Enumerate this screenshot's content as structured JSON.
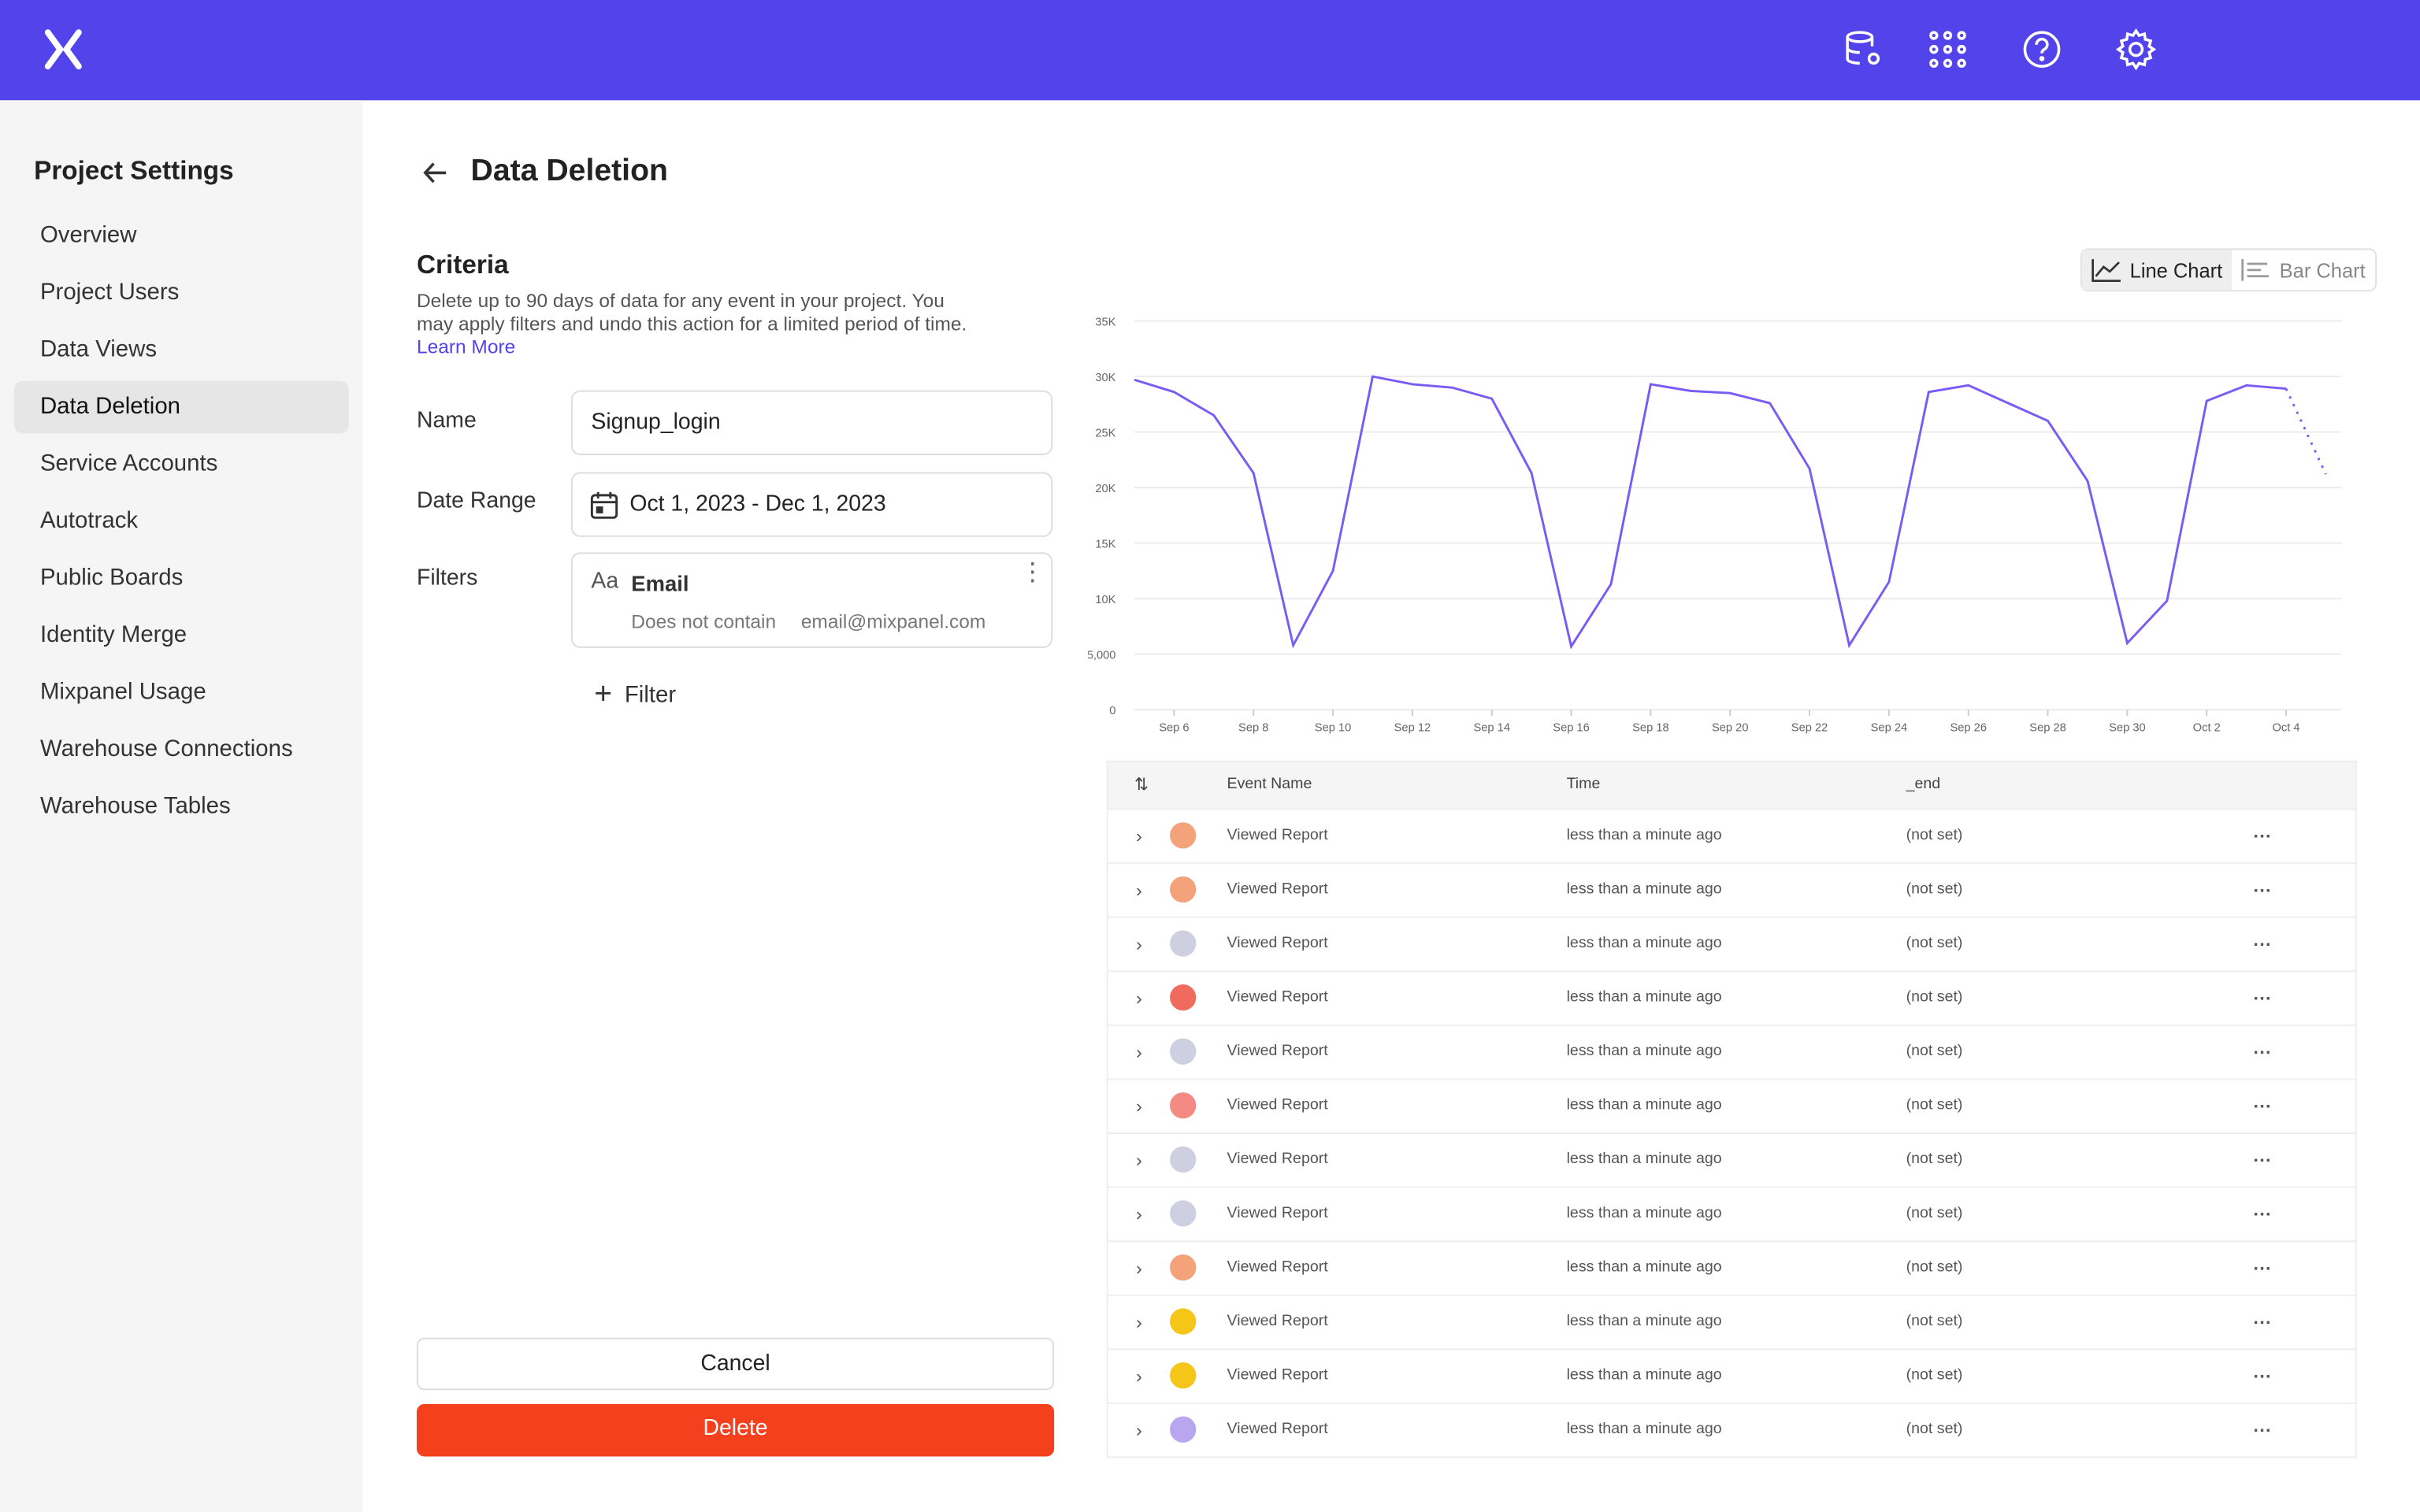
{
  "topbar": {
    "icons": [
      "mixpanel-logo",
      "database-settings-icon",
      "apps-grid-icon",
      "help-icon",
      "gear-icon"
    ],
    "color": "#5243ea"
  },
  "sidebar": {
    "title": "Project Settings",
    "items": [
      {
        "label": "Overview"
      },
      {
        "label": "Project Users"
      },
      {
        "label": "Data Views"
      },
      {
        "label": "Data Deletion",
        "active": true
      },
      {
        "label": "Service Accounts"
      },
      {
        "label": "Autotrack"
      },
      {
        "label": "Public Boards"
      },
      {
        "label": "Identity Merge"
      },
      {
        "label": "Mixpanel Usage"
      },
      {
        "label": "Warehouse Connections"
      },
      {
        "label": "Warehouse Tables"
      }
    ]
  },
  "page": {
    "title": "Data Deletion"
  },
  "criteria": {
    "heading": "Criteria",
    "description": "Delete up to 90 days of data for any event in your project. You may apply filters and undo this action for a limited period of time.",
    "learn_more": "Learn More",
    "name_label": "Name",
    "name_value": "Signup_login",
    "date_label": "Date Range",
    "date_value": "Oct 1, 2023 - Dec 1, 2023",
    "filters_label": "Filters",
    "filter": {
      "type_icon": "Aa",
      "property": "Email",
      "operator": "Does not contain",
      "value": "email@mixpanel.com"
    },
    "add_filter": "Filter",
    "cancel": "Cancel",
    "delete": "Delete",
    "delete_color": "#f4401c"
  },
  "chart_toggle": {
    "line": "Line Chart",
    "bar": "Bar Chart",
    "selected": "line"
  },
  "chart_data": {
    "type": "line",
    "color": "#7a5cf5",
    "ylim": [
      0,
      35000
    ],
    "yticks": [
      {
        "v": 0,
        "l": "0"
      },
      {
        "v": 5000,
        "l": "5,000"
      },
      {
        "v": 10000,
        "l": "10K"
      },
      {
        "v": 15000,
        "l": "15K"
      },
      {
        "v": 20000,
        "l": "20K"
      },
      {
        "v": 25000,
        "l": "25K"
      },
      {
        "v": 30000,
        "l": "30K"
      },
      {
        "v": 35000,
        "l": "35K"
      }
    ],
    "xticks": [
      "Sep 6",
      "Sep 8",
      "Sep 10",
      "Sep 12",
      "Sep 14",
      "Sep 16",
      "Sep 18",
      "Sep 20",
      "Sep 22",
      "Sep 24",
      "Sep 26",
      "Sep 28",
      "Sep 30",
      "Oct 2",
      "Oct 4"
    ],
    "x": [
      "Sep 5",
      "Sep 6",
      "Sep 7",
      "Sep 8",
      "Sep 9",
      "Sep 10",
      "Sep 11",
      "Sep 12",
      "Sep 13",
      "Sep 14",
      "Sep 15",
      "Sep 16",
      "Sep 17",
      "Sep 18",
      "Sep 19",
      "Sep 20",
      "Sep 21",
      "Sep 22",
      "Sep 23",
      "Sep 24",
      "Sep 25",
      "Sep 26",
      "Sep 27",
      "Sep 28",
      "Sep 29",
      "Sep 30",
      "Oct 1",
      "Oct 2",
      "Oct 3",
      "Oct 4",
      "Oct 5"
    ],
    "values": [
      29700,
      28600,
      26500,
      21300,
      5800,
      12500,
      30000,
      29300,
      29000,
      28000,
      21300,
      5700,
      11300,
      29300,
      28700,
      28500,
      27600,
      21700,
      5800,
      11500,
      28600,
      29200,
      27600,
      26000,
      20600,
      6000,
      9800,
      27800,
      29200,
      28900,
      21200
    ],
    "incomplete_last_point": true,
    "grid": true
  },
  "table": {
    "columns": [
      "Event Name",
      "Time",
      "_end"
    ],
    "rows": [
      {
        "event": "Viewed Report",
        "time": "less than a minute ago",
        "end": "(not set)",
        "avatar": "#f4a27a"
      },
      {
        "event": "Viewed Report",
        "time": "less than a minute ago",
        "end": "(not set)",
        "avatar": "#f4a27a"
      },
      {
        "event": "Viewed Report",
        "time": "less than a minute ago",
        "end": "(not set)",
        "avatar": "#cfcfe2"
      },
      {
        "event": "Viewed Report",
        "time": "less than a minute ago",
        "end": "(not set)",
        "avatar": "#f06b5e"
      },
      {
        "event": "Viewed Report",
        "time": "less than a minute ago",
        "end": "(not set)",
        "avatar": "#cfcfe2"
      },
      {
        "event": "Viewed Report",
        "time": "less than a minute ago",
        "end": "(not set)",
        "avatar": "#f38b84"
      },
      {
        "event": "Viewed Report",
        "time": "less than a minute ago",
        "end": "(not set)",
        "avatar": "#cfcfe2"
      },
      {
        "event": "Viewed Report",
        "time": "less than a minute ago",
        "end": "(not set)",
        "avatar": "#cfcfe2"
      },
      {
        "event": "Viewed Report",
        "time": "less than a minute ago",
        "end": "(not set)",
        "avatar": "#f4a27a"
      },
      {
        "event": "Viewed Report",
        "time": "less than a minute ago",
        "end": "(not set)",
        "avatar": "#f5c518"
      },
      {
        "event": "Viewed Report",
        "time": "less than a minute ago",
        "end": "(not set)",
        "avatar": "#f5c518"
      },
      {
        "event": "Viewed Report",
        "time": "less than a minute ago",
        "end": "(not set)",
        "avatar": "#b9a6f0"
      }
    ]
  }
}
